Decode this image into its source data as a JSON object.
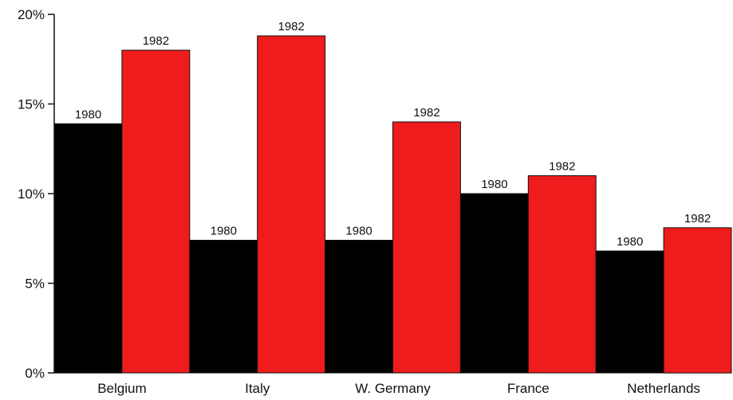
{
  "chart_data": {
    "type": "bar",
    "title": "",
    "xlabel": "",
    "ylabel": "",
    "categories": [
      "Belgium",
      "Italy",
      "W. Germany",
      "France",
      "Netherlands"
    ],
    "series": [
      {
        "name": "1980",
        "values": [
          13.9,
          7.4,
          7.4,
          10.0,
          6.8
        ],
        "color": "#000000"
      },
      {
        "name": "1982",
        "values": [
          18.0,
          18.8,
          14.0,
          11.0,
          8.1
        ],
        "color": "#ee1c1c"
      }
    ],
    "ylim": [
      0,
      20
    ],
    "yticks": [
      0,
      5,
      10,
      15,
      20
    ],
    "ytick_labels": [
      "0%",
      "5%",
      "10%",
      "15%",
      "20%"
    ],
    "legend": "none",
    "grid": false
  }
}
